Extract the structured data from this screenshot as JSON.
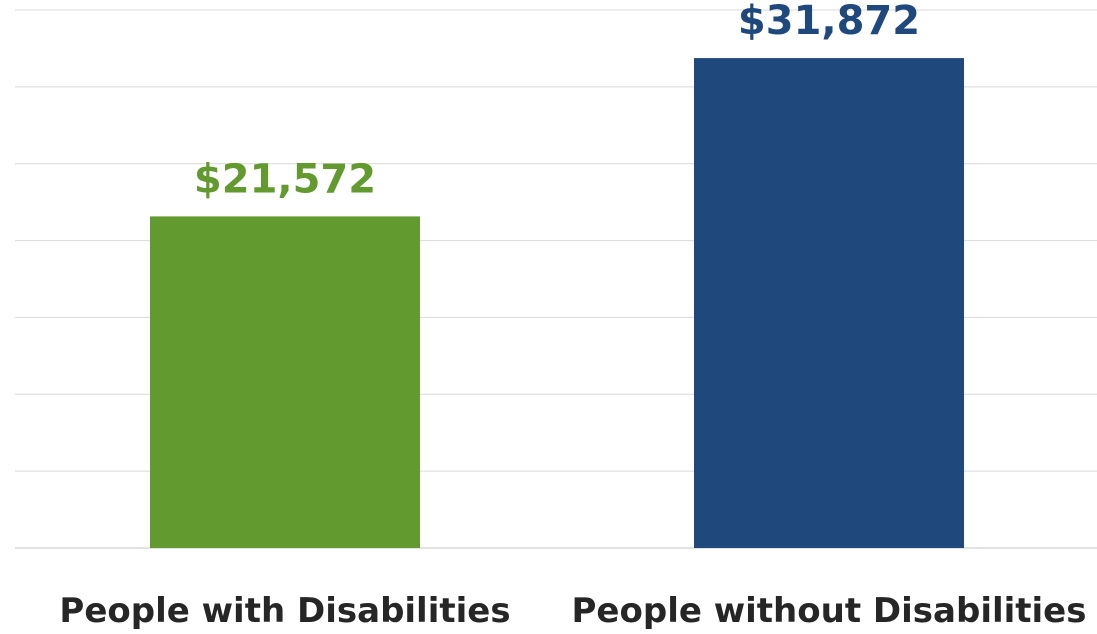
{
  "chart_data": {
    "type": "bar",
    "categories": [
      "People with Disabilities",
      "People without Disabilities"
    ],
    "values": [
      21572,
      31872
    ],
    "data_labels": [
      "$21,572",
      "$31,872"
    ],
    "colors": [
      "#629A2F",
      "#1F497D"
    ],
    "title": "",
    "xlabel": "",
    "ylabel": "",
    "ylim": [
      0,
      35000
    ],
    "grid": true,
    "legend": "none"
  }
}
